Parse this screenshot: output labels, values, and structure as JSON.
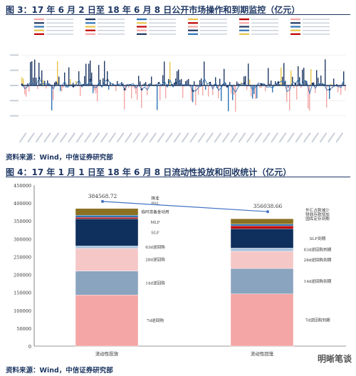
{
  "figure3": {
    "title": "图 3：17 年 6 月 2 日至 18 年 6 月 8 日公开市场操作和到期监控（亿元）",
    "source": "资料来源：Wind，中信证券研究部"
  },
  "figure4": {
    "title": "图 4：17 年 1 月 1 日至 18 年 6 月 8 日流动性投放和回收统计（亿元）",
    "source": "资料来源：Wind，中信证券研究部"
  },
  "watermark": "明晰笔谈",
  "colors": {
    "navy": "#1f3864",
    "s7d": "#f4a6a6",
    "s14d": "#8aa3bf",
    "s28d": "#f6c7c7",
    "s63d": "#a9c4de",
    "mlf": "#0f2f5c",
    "slf": "#c00000",
    "psl": "#2e75b6",
    "other": "#8a7020",
    "line": "#4472c4"
  },
  "chart_data": [
    {
      "type": "bar",
      "title": "",
      "ylim": [
        -3000,
        3000
      ],
      "yticks": [
        -2000,
        -1000,
        0,
        1000,
        2000
      ],
      "legend_placement": "top",
      "note": "dense daily net injection / maturity bars with line overlay",
      "series_colors": [
        "#f4a6a6",
        "#1f3864",
        "#2e75b6",
        "#e8c44a",
        "#c00000"
      ]
    },
    {
      "type": "bar",
      "stacked": true,
      "title": "",
      "ylim": [
        0,
        450000
      ],
      "yticks": [
        0,
        50000,
        100000,
        150000,
        200000,
        250000,
        300000,
        350000,
        400000,
        450000
      ],
      "ytick_labels": [
        "0",
        "50000",
        "100000",
        "150000",
        "200000",
        "250000",
        "300000",
        "350000",
        "400000",
        "450000"
      ],
      "categories": [
        "流动性投放",
        "流动性回笼"
      ],
      "totals": [
        384568.72,
        356038.66
      ],
      "total_labels": [
        "384568.72",
        "356038.66"
      ],
      "series": [
        {
          "key": "s7d",
          "values": [
            143000,
            146000
          ]
        },
        {
          "key": "s14d",
          "values": [
            67000,
            71000
          ]
        },
        {
          "key": "s28d",
          "values": [
            63000,
            48000
          ]
        },
        {
          "key": "s63d",
          "values": [
            7000,
            9000
          ]
        },
        {
          "key": "mlf",
          "values": [
            76000,
            54000
          ]
        },
        {
          "key": "slf",
          "values": [
            4000,
            8000
          ]
        },
        {
          "key": "psl",
          "values": [
            6000,
            5000
          ]
        },
        {
          "key": "other",
          "values": [
            18568.72,
            15038.66
          ]
        }
      ],
      "left_labels": [
        {
          "series": "s7d",
          "text": "7d逆回购"
        },
        {
          "series": "s14d",
          "text": "14d逆回购"
        },
        {
          "series": "s28d",
          "text": "28d逆回购"
        },
        {
          "series": "s63d",
          "text": "63d逆回购"
        },
        {
          "series": "mlf",
          "text": "SLF"
        },
        {
          "series": "mlf_top",
          "text": "MLF"
        },
        {
          "series": "other",
          "text": "临时准备金动用"
        },
        {
          "series": "other_top",
          "text": "PSL"
        },
        {
          "series": "other_top2",
          "text": "降准"
        }
      ],
      "right_labels": [
        {
          "series": "s7d",
          "text": "7d逆回购到期"
        },
        {
          "series": "s14d",
          "text": "14d逆回购到期"
        },
        {
          "series": "s28d",
          "text": "28d逆回购到期"
        },
        {
          "series": "s63d",
          "text": "63d逆回购到期"
        },
        {
          "series": "mlf",
          "text": "SLF到期"
        },
        {
          "series": "other_a",
          "text": "国库定存到期"
        },
        {
          "series": "other_b",
          "text": "财政存款增加"
        },
        {
          "series": "other_c",
          "text": "外汇占款减少"
        }
      ]
    }
  ]
}
